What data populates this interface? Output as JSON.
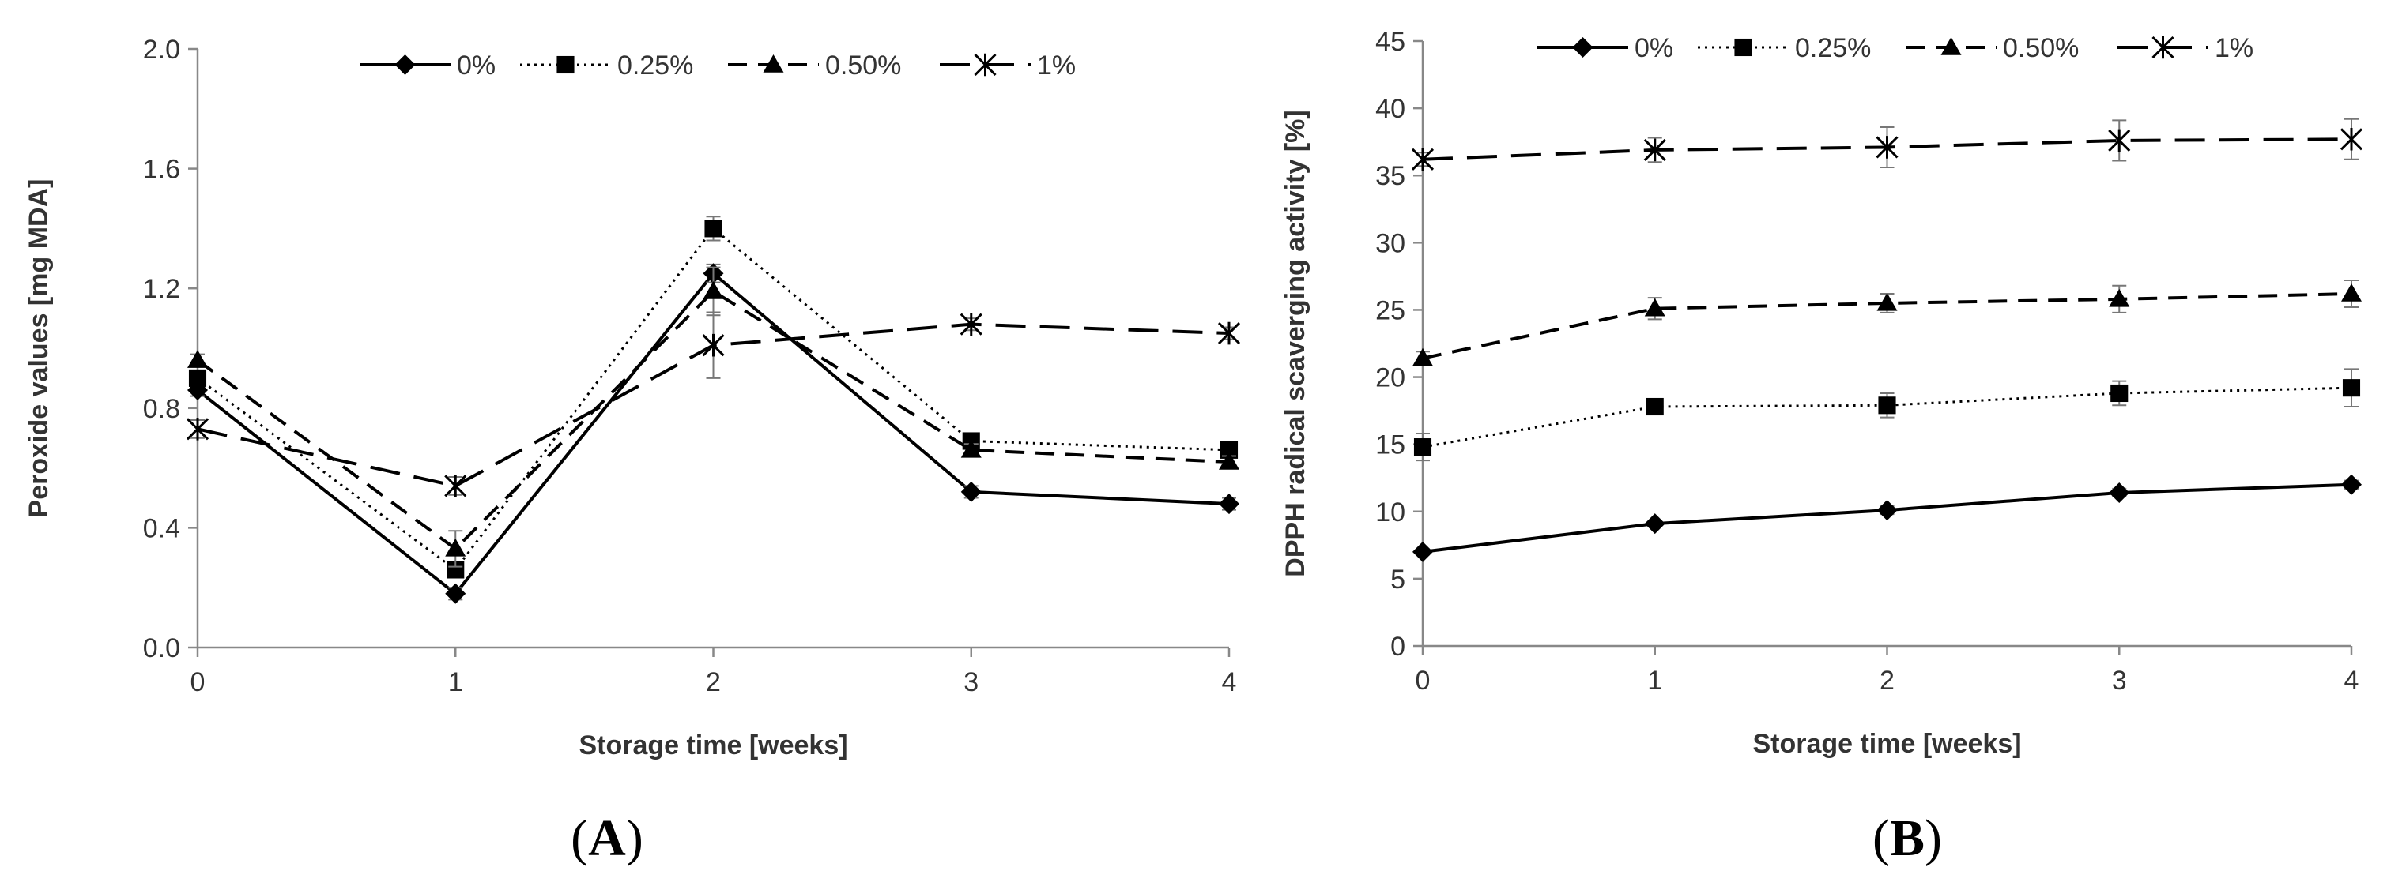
{
  "chart_data": [
    {
      "panel": "A",
      "panel_label_open": "(",
      "panel_label_close": ")",
      "type": "line",
      "title": "",
      "xlabel": "Storage time [weeks]",
      "ylabel": "Peroxide values [mg MDA]",
      "x": [
        0,
        1,
        2,
        3,
        4
      ],
      "xticks": [
        "0",
        "1",
        "2",
        "3",
        "4"
      ],
      "ylim": [
        0,
        2.0
      ],
      "yticks": [
        "0.0",
        "0.4",
        "0.8",
        "1.2",
        "1.6",
        "2.0"
      ],
      "ytick_values": [
        0,
        0.4,
        0.8,
        1.2,
        1.6,
        2.0
      ],
      "legend_position": "top",
      "series": [
        {
          "name": "0%",
          "marker": "diamond",
          "line": "solid",
          "values": [
            0.86,
            0.18,
            1.25,
            0.52,
            0.48
          ],
          "errors": [
            0.02,
            0.02,
            0.03,
            0.02,
            0.02
          ]
        },
        {
          "name": "0.25%",
          "marker": "square",
          "line": "dotted",
          "values": [
            0.9,
            0.26,
            1.4,
            0.69,
            0.66
          ],
          "errors": [
            0.02,
            0.02,
            0.04,
            0.02,
            0.02
          ]
        },
        {
          "name": "0.50%",
          "marker": "triangle",
          "line": "dashed",
          "values": [
            0.96,
            0.33,
            1.19,
            0.66,
            0.62
          ],
          "errors": [
            0.02,
            0.06,
            0.08,
            0.02,
            0.02
          ]
        },
        {
          "name": "1%",
          "marker": "asterisk",
          "line": "longdash",
          "values": [
            0.73,
            0.54,
            1.01,
            1.08,
            1.05
          ],
          "errors": [
            0.03,
            0.03,
            0.11,
            0.02,
            0.02
          ]
        }
      ]
    },
    {
      "panel": "B",
      "panel_label_open": "(",
      "panel_label_close": ")",
      "type": "line",
      "title": "",
      "xlabel": "Storage time [weeks]",
      "ylabel": "DPPH radical scaverging activity [%]",
      "x": [
        0,
        1,
        2,
        3,
        4
      ],
      "xticks": [
        "0",
        "1",
        "2",
        "3",
        "4"
      ],
      "ylim": [
        0,
        45
      ],
      "yticks": [
        "0",
        "5",
        "10",
        "15",
        "20",
        "25",
        "30",
        "35",
        "40",
        "45"
      ],
      "ytick_values": [
        0,
        5,
        10,
        15,
        20,
        25,
        30,
        35,
        40,
        45
      ],
      "legend_position": "top",
      "series": [
        {
          "name": "0%",
          "marker": "diamond",
          "line": "solid",
          "values": [
            7.0,
            9.1,
            10.1,
            11.4,
            12.0
          ],
          "errors": [
            0.2,
            0.2,
            0.3,
            0.3,
            0.3
          ]
        },
        {
          "name": "0.25%",
          "marker": "square",
          "line": "dotted",
          "values": [
            14.8,
            17.8,
            17.9,
            18.8,
            19.2
          ],
          "errors": [
            1.0,
            0.5,
            0.9,
            0.9,
            1.4
          ]
        },
        {
          "name": "0.50%",
          "marker": "triangle",
          "line": "dashed",
          "values": [
            21.4,
            25.1,
            25.5,
            25.8,
            26.2
          ],
          "errors": [
            0.5,
            0.8,
            0.7,
            1.0,
            1.0
          ]
        },
        {
          "name": "1%",
          "marker": "asterisk",
          "line": "longdash",
          "values": [
            36.2,
            36.9,
            37.1,
            37.6,
            37.7
          ],
          "errors": [
            0.5,
            0.9,
            1.5,
            1.5,
            1.5
          ]
        }
      ]
    }
  ]
}
